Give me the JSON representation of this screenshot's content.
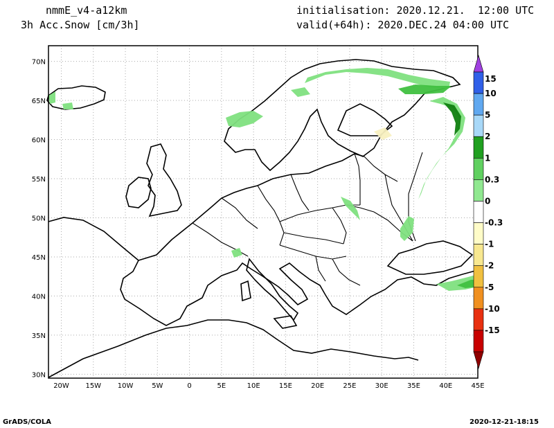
{
  "header": {
    "model": "nmmE_v4-a12km",
    "field": "3h Acc.Snow [cm/3h]",
    "init": "initialisation: 2020.12.21.  12:00 UTC",
    "valid": "valid(+64h): 2020.DEC.24 04:00 UTC"
  },
  "footer": {
    "software": "GrADS/COLA",
    "timestamp": "2020-12-21-18:15"
  },
  "map": {
    "lon_range": [
      -22,
      45
    ],
    "lat_range": [
      29.5,
      72
    ],
    "x_ticks": [
      "20W",
      "15W",
      "10W",
      "5W",
      "0",
      "5E",
      "10E",
      "15E",
      "20E",
      "25E",
      "30E",
      "35E",
      "40E",
      "45E"
    ],
    "y_ticks": [
      "30N",
      "35N",
      "40N",
      "45N",
      "50N",
      "55N",
      "60N",
      "65N",
      "70N"
    ]
  },
  "colorbar": {
    "labels": [
      "15",
      "10",
      "5",
      "2",
      "1",
      "0.3",
      "0",
      "-0.3",
      "-1",
      "-2",
      "-5",
      "-10",
      "-15"
    ],
    "colors": [
      "#a040e0",
      "#3060e8",
      "#60a8f0",
      "#a8d8f8",
      "#20a020",
      "#60d060",
      "#90e890",
      "#ffffff",
      "#fffcc8",
      "#f8e890",
      "#f0c040",
      "#f09020",
      "#e83010",
      "#c80000",
      "#900000"
    ]
  },
  "snow_colors": {
    "light": "#80e080",
    "medium": "#40c040",
    "dark": "#108010",
    "cream": "#f8f0c0"
  }
}
